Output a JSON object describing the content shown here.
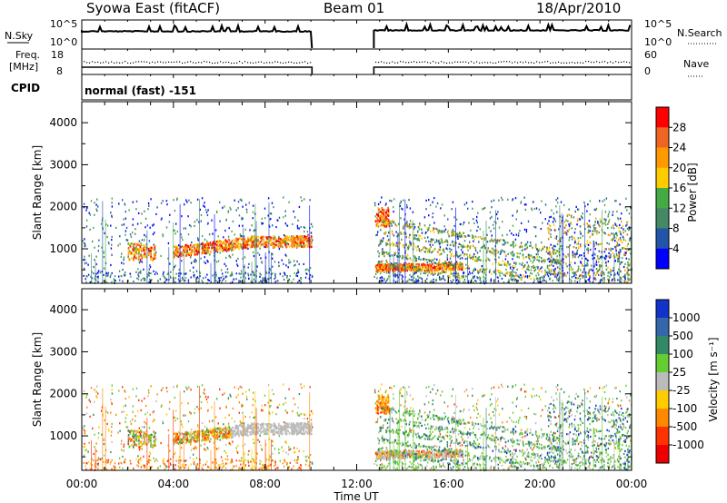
{
  "header": {
    "station": "Syowa East (fitACF)",
    "beam": "Beam 01",
    "date": "18/Apr/2010"
  },
  "top_panels": {
    "nsky_label": "N.Sky",
    "nsky_ticks": [
      "10^5",
      "10^0"
    ],
    "nsearch_label": "N.Search",
    "nsearch_ticks": [
      "10^5",
      "10^0"
    ],
    "freq_label_1": "Freq.",
    "freq_label_2": "[MHz]",
    "freq_ticks": [
      "18",
      "8"
    ],
    "nave_label": "Nave",
    "nave_ticks": [
      "60",
      "0"
    ],
    "cpid_label": "CPID",
    "cpid_value": "normal (fast) -151"
  },
  "colorbars": {
    "power": {
      "label": "Power [dB]",
      "ticks": [
        "28",
        "24",
        "20",
        "16",
        "12",
        "8",
        "4"
      ],
      "colors": [
        "#ff0000",
        "#ee6622",
        "#ff9900",
        "#ffcc00",
        "#44aa44",
        "#448866",
        "#2255aa",
        "#0000ff"
      ]
    },
    "velocity": {
      "label": "Velocity [m s⁻¹]",
      "ticks": [
        "1000",
        "500",
        "100",
        "25",
        "-25",
        "-100",
        "-500",
        "-1000"
      ],
      "colors": [
        "#1133cc",
        "#3366aa",
        "#338866",
        "#66cc33",
        "#bbbbbb",
        "#ffcc00",
        "#ff8800",
        "#ff3300",
        "#ee0000"
      ]
    }
  },
  "chart_data": [
    {
      "type": "heatmap",
      "name": "power",
      "ylabel": "Slant Range [km]",
      "yticks": [
        "1000",
        "2000",
        "3000",
        "4000"
      ],
      "ylim": [
        180,
        4500
      ],
      "xlim": [
        0,
        24
      ],
      "data_gap_hours": [
        10.05,
        12.75
      ]
    },
    {
      "type": "heatmap",
      "name": "velocity",
      "ylabel": "Slant Range [km]",
      "yticks": [
        "1000",
        "2000",
        "3000",
        "4000"
      ],
      "ylim": [
        180,
        4500
      ],
      "xlim": [
        0,
        24
      ],
      "xlabel": "Time UT",
      "xticks": [
        "00:00",
        "04:00",
        "08:00",
        "12:00",
        "16:00",
        "20:00",
        "00:00"
      ],
      "data_gap_hours": [
        10.05,
        12.75
      ]
    }
  ]
}
